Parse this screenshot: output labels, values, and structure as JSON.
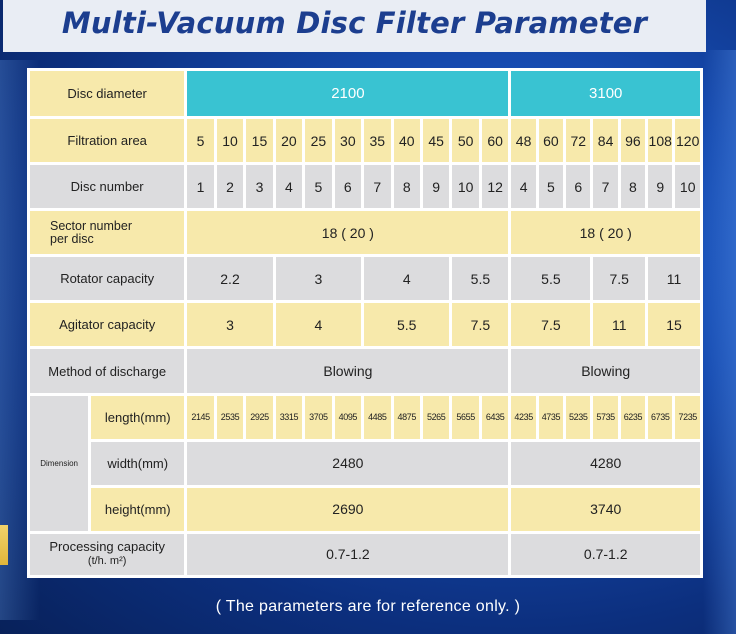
{
  "title": "Multi-Vacuum Disc Filter Parameter",
  "footer_note": "( The parameters are for reference only. )",
  "rows": {
    "disc_diameter": {
      "label": "Disc diameter",
      "a": "2100",
      "b": "3100"
    },
    "filtration_area": {
      "label": "Filtration area",
      "a": [
        "5",
        "10",
        "15",
        "20",
        "25",
        "30",
        "35",
        "40",
        "45",
        "50",
        "60"
      ],
      "b": [
        "48",
        "60",
        "72",
        "84",
        "96",
        "108",
        "120"
      ]
    },
    "disc_number": {
      "label": "Disc number",
      "a": [
        "1",
        "2",
        "3",
        "4",
        "5",
        "6",
        "7",
        "8",
        "9",
        "10",
        "12"
      ],
      "b": [
        "4",
        "5",
        "6",
        "7",
        "8",
        "9",
        "10"
      ]
    },
    "sector_number": {
      "label_line1": "Sector number",
      "label_line2": "per disc",
      "a": "18 ( 20 )",
      "b": "18 ( 20 )"
    },
    "rotator_capacity": {
      "label": "Rotator capacity",
      "a": [
        "2.2",
        "3",
        "4",
        "5.5"
      ],
      "b": [
        "5.5",
        "7.5",
        "11"
      ]
    },
    "agitator_capacity": {
      "label": "Agitator capacity",
      "a": [
        "3",
        "4",
        "5.5",
        "7.5"
      ],
      "b": [
        "7.5",
        "11",
        "15"
      ]
    },
    "method_of_discharge": {
      "label": "Method of discharge",
      "a": "Blowing",
      "b": "Blowing"
    },
    "dimension": {
      "label": "Dimension",
      "length": {
        "label": "length(mm)",
        "a": [
          "2145",
          "2535",
          "2925",
          "3315",
          "3705",
          "4095",
          "4485",
          "4875",
          "5265",
          "5655",
          "6435"
        ],
        "b": [
          "4235",
          "4735",
          "5235",
          "5735",
          "6235",
          "6735",
          "7235"
        ]
      },
      "width": {
        "label": "width(mm)",
        "a": "2480",
        "b": "4280"
      },
      "height": {
        "label": "height(mm)",
        "a": "2690",
        "b": "3740"
      }
    },
    "processing_capacity": {
      "label_line1": "Processing capacity",
      "label_line2": "(t/h. m²)",
      "a": "0.7-1.2",
      "b": "0.7-1.2"
    }
  }
}
